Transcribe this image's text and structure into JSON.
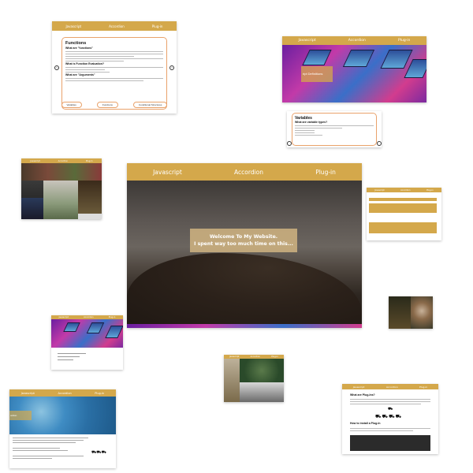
{
  "nav": {
    "javascript": "Javascript",
    "accordion": "Accordion",
    "plugin": "Plug-in"
  },
  "functions_card": {
    "title": "Functions",
    "subtitle1": "What are \"functions\"",
    "subtitle2": "What is Function Evaluation?",
    "subtitle3": "What are \"Arguments\"",
    "buttons": [
      "Variables",
      "Functions",
      "Conditional Structures"
    ]
  },
  "hero2_card": {
    "overlay": "ript Definitions"
  },
  "variables_card": {
    "title": "Variables",
    "subtitle": "What are variable types?"
  },
  "main_card": {
    "welcome_line1": "Welcome To My Website.",
    "welcome_line2": "I spent way too much time on this..."
  },
  "plugin_card": {
    "heading1": "What are Plug-Ins?",
    "heading2": "How to install a Plug-In"
  },
  "water_card": {
    "overlay": "ordion"
  },
  "colors": {
    "accent": "#d4a84b",
    "border": "#e9a26b"
  },
  "icons": [
    "left-arrow-icon",
    "right-arrow-icon",
    "car-icon"
  ]
}
